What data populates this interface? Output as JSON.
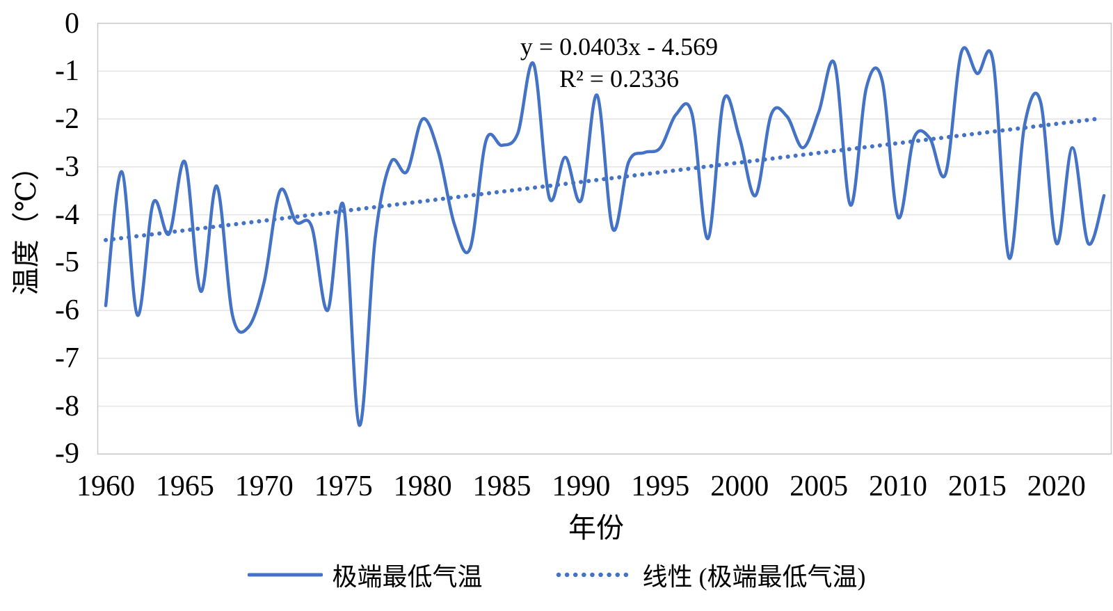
{
  "chart_data": {
    "type": "line",
    "title": "",
    "xlabel": "年份",
    "ylabel": "温度（℃）",
    "x_ticks": [
      1960,
      1965,
      1970,
      1975,
      1980,
      1985,
      1990,
      1995,
      2000,
      2005,
      2010,
      2015,
      2020
    ],
    "y_ticks": [
      0,
      -1,
      -2,
      -3,
      -4,
      -5,
      -6,
      -7,
      -8,
      -9
    ],
    "ylim": [
      -9,
      0
    ],
    "x": [
      1960,
      1961,
      1962,
      1963,
      1964,
      1965,
      1966,
      1967,
      1968,
      1969,
      1970,
      1971,
      1972,
      1973,
      1974,
      1975,
      1976,
      1977,
      1978,
      1979,
      1980,
      1981,
      1982,
      1983,
      1984,
      1985,
      1986,
      1987,
      1988,
      1989,
      1990,
      1991,
      1992,
      1993,
      1994,
      1995,
      1996,
      1997,
      1998,
      1999,
      2000,
      2001,
      2002,
      2003,
      2004,
      2005,
      2006,
      2007,
      2008,
      2009,
      2010,
      2011,
      2012,
      2013,
      2014,
      2015,
      2016,
      2017,
      2018,
      2019,
      2020,
      2021,
      2022,
      2023
    ],
    "series": [
      {
        "name": "极端最低气温",
        "values": [
          -5.9,
          -3.1,
          -6.1,
          -3.75,
          -4.4,
          -2.9,
          -5.6,
          -3.4,
          -6.1,
          -6.35,
          -5.4,
          -3.5,
          -4.15,
          -4.25,
          -6.0,
          -3.8,
          -8.4,
          -4.5,
          -2.9,
          -3.1,
          -2.0,
          -2.7,
          -4.2,
          -4.7,
          -2.45,
          -2.55,
          -2.3,
          -0.85,
          -3.65,
          -2.8,
          -3.7,
          -1.5,
          -4.3,
          -2.9,
          -2.7,
          -2.6,
          -1.9,
          -1.9,
          -4.5,
          -1.6,
          -2.4,
          -3.6,
          -1.9,
          -1.95,
          -2.6,
          -1.85,
          -0.85,
          -3.8,
          -1.35,
          -1.2,
          -4.05,
          -2.4,
          -2.4,
          -3.15,
          -0.6,
          -1.05,
          -0.8,
          -4.9,
          -2.1,
          -1.65,
          -4.6,
          -2.6,
          -4.6,
          -3.6
        ]
      }
    ],
    "trendline": {
      "name": "线性 (极端最低气温)",
      "slope": 0.0403,
      "intercept": -4.569,
      "equation": "y = 0.0403x - 4.569",
      "r_squared": "R² = 0.2336"
    },
    "legend": {
      "series_label": "极端最低气温",
      "trend_label": "线性 (极端最低气温)"
    },
    "grid": "horizontal",
    "legend_position": "bottom",
    "colors": {
      "line": "#4472C4",
      "grid": "#E4E4E4",
      "border": "#C9C9C9",
      "text": "#000000"
    }
  }
}
